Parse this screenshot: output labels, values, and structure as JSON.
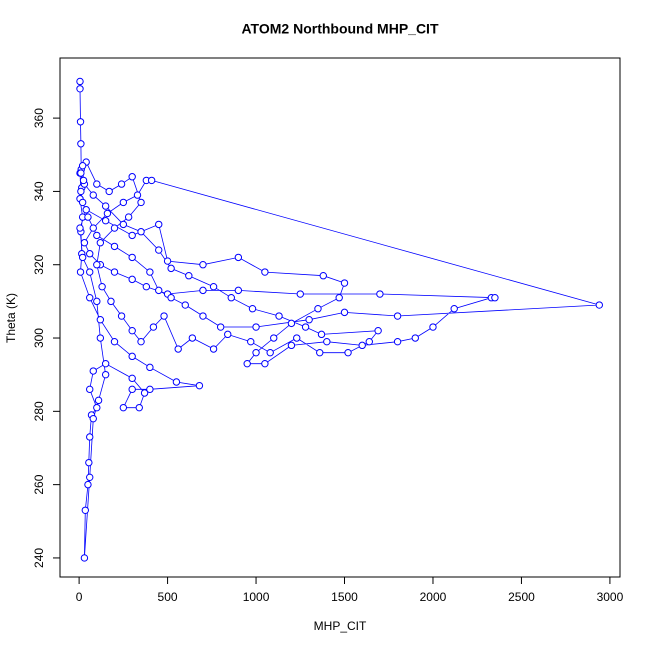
{
  "chart_data": {
    "type": "scatter-line",
    "title": "ATOM2 Northbound MHP_CIT",
    "x_label": "MHP_CIT",
    "y_label": "Theta (K)",
    "color": "#0000ff",
    "xlim": [
      -108,
      3057
    ],
    "ylim": [
      234.8,
      376.4
    ],
    "xticks": [
      0,
      500,
      1000,
      1500,
      2000,
      2500,
      3000
    ],
    "yticks": [
      240,
      260,
      280,
      300,
      320,
      340,
      360
    ],
    "x": [
      5,
      5,
      8,
      10,
      12,
      15,
      5,
      20,
      10,
      15,
      8,
      60,
      120,
      200,
      300,
      400,
      550,
      680,
      400,
      300,
      250,
      340,
      370,
      300,
      150,
      80,
      60,
      100,
      70,
      60,
      55,
      50,
      35,
      30,
      60,
      80,
      110,
      150,
      120,
      100,
      60,
      20,
      5,
      40,
      150,
      300,
      450,
      500,
      700,
      900,
      1050,
      1380,
      1500,
      1470,
      1350,
      1200,
      1100,
      1000,
      950,
      1050,
      1200,
      1400,
      1600,
      1800,
      1900,
      2000,
      2120,
      2330,
      2350,
      1700,
      1250,
      900,
      700,
      500,
      380,
      300,
      200,
      120,
      60,
      30,
      80,
      160,
      250,
      330,
      380,
      410,
      2940,
      1800,
      1500,
      1300,
      1000,
      800,
      700,
      600,
      520,
      450,
      400,
      300,
      200,
      100,
      50,
      20,
      10,
      5,
      40,
      100,
      170,
      240,
      300,
      350,
      280,
      200,
      120,
      100,
      130,
      180,
      240,
      300,
      350,
      420,
      480,
      560,
      640,
      760,
      840,
      970,
      1080,
      1230,
      1360,
      1520,
      1640,
      1690,
      1370,
      1280,
      1130,
      980,
      860,
      760,
      620,
      520,
      450,
      350,
      250,
      150,
      80,
      30,
      10,
      20,
      25
    ],
    "values": [
      370,
      368,
      359,
      353,
      346,
      341,
      338,
      333,
      329,
      323,
      318,
      311,
      305,
      299,
      295,
      292,
      288,
      287,
      286,
      286,
      281,
      281,
      285,
      289,
      293,
      291,
      286,
      281,
      279,
      273,
      266,
      260,
      253,
      240,
      262,
      278,
      283,
      290,
      300,
      310,
      318,
      322,
      330,
      335,
      332,
      328,
      331,
      321,
      320,
      322,
      318,
      317,
      315,
      311,
      308,
      304,
      300,
      296,
      293,
      293,
      298,
      299,
      298,
      299,
      300,
      303,
      308,
      311,
      311,
      312,
      312,
      313,
      313,
      312,
      314,
      316,
      318,
      320,
      323,
      326,
      330,
      334,
      337,
      339,
      343,
      343,
      309,
      306,
      307,
      305,
      303,
      303,
      306,
      309,
      311,
      313,
      318,
      322,
      325,
      328,
      333,
      337,
      340,
      345,
      348,
      342,
      340,
      342,
      344,
      337,
      333,
      330,
      326,
      320,
      314,
      310,
      306,
      302,
      299,
      303,
      306,
      297,
      300,
      297,
      301,
      299,
      296,
      300,
      296,
      296,
      299,
      302,
      301,
      303,
      306,
      308,
      311,
      314,
      317,
      319,
      324,
      329,
      331,
      336,
      339,
      342,
      345,
      347,
      343
    ]
  }
}
